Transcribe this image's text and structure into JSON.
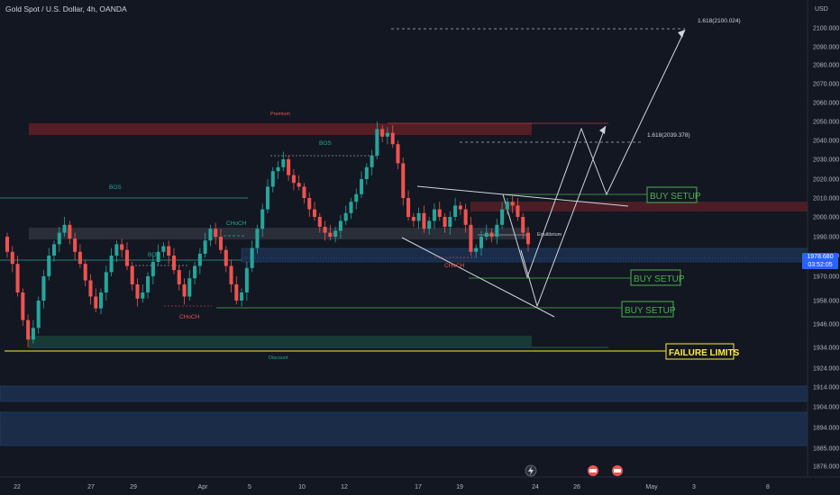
{
  "header": {
    "title": "Gold Spot / U.S. Dollar, 4h, OANDA"
  },
  "currency_label": "USD",
  "current_price": {
    "value": "1978.680",
    "countdown": "03:52:05"
  },
  "colors": {
    "up": "#26a69a",
    "down": "#ef5350",
    "premium_zone": "#5d1f26",
    "discount_zone": "#173a35",
    "demand_zone": "#1b2c48",
    "equilibrium_zone": "#2a2e39",
    "setup_green": "#4caf50",
    "failure_yellow": "#ffeb3b"
  },
  "chart_data": {
    "type": "candlestick",
    "title": "Gold Spot / U.S. Dollar, 4h, OANDA",
    "y_axis": {
      "ticks": [
        2100.0,
        2090.0,
        2080.0,
        2070.0,
        2060.0,
        2050.0,
        2040.0,
        2030.0,
        2020.0,
        2010.0,
        2000.0,
        1990.0,
        1980.0,
        1970.0,
        1958.0,
        1946.0,
        1934.0,
        1924.0,
        1914.0,
        1904.0,
        1894.0,
        1885.0,
        1876.0
      ],
      "range": [
        1873,
        2103
      ]
    },
    "x_axis": {
      "ticks": [
        "22",
        "27",
        "29",
        "Apr",
        "5",
        "10",
        "12",
        "17",
        "19",
        "24",
        "26",
        "May",
        "3",
        "8"
      ]
    },
    "candles_close": [
      1982,
      1976,
      1962,
      1948,
      1938,
      1944,
      1958,
      1970,
      1980,
      1986,
      1992,
      1996,
      1989,
      1982,
      1976,
      1968,
      1960,
      1954,
      1962,
      1972,
      1980,
      1986,
      1983,
      1975,
      1966,
      1959,
      1962,
      1970,
      1977,
      1982,
      1985,
      1980,
      1973,
      1966,
      1960,
      1969,
      1975,
      1981,
      1988,
      1994,
      1990,
      1983,
      1975,
      1966,
      1958,
      1962,
      1974,
      1984,
      1994,
      2004,
      2016,
      2024,
      2026,
      2030,
      2022,
      2018,
      2016,
      2010,
      2004,
      2000,
      1995,
      1992,
      1990,
      1993,
      1998,
      2002,
      2008,
      2012,
      2020,
      2026,
      2032,
      2046,
      2042,
      2044,
      2038,
      2028,
      2010,
      2000,
      1998,
      2002,
      1994,
      1998,
      2004,
      2000,
      1995,
      2000,
      2006,
      2004,
      1996,
      1982,
      1984,
      1990,
      1992,
      1990,
      1996,
      2004,
      2008,
      2006,
      2000,
      1992,
      1986
    ],
    "levels": [
      {
        "label": "1.618(2100.024)",
        "value": 2100.024
      },
      {
        "label": "1.618(2039.378)",
        "value": 2039.378
      }
    ],
    "annotations": [
      "Premium",
      "BOS",
      "BOS",
      "BOS",
      "CHoCH",
      "CHoCH",
      "CHoCH",
      "Equilibrium",
      "Discount",
      "BUY SETUP",
      "BUY SETUP",
      "BUY SETUP",
      "FAILURE LIMITS"
    ]
  },
  "labels": {
    "premium": "Premium",
    "discount": "Discount",
    "equilibrium": "Equilibrium",
    "bos_1": "BOS",
    "bos_2": "BOS",
    "bos_3": "BOS",
    "choch_1": "CHoCH",
    "choch_2": "CHoCH",
    "choch_3": "CHoCH",
    "buy_setup_1": "BUY SETUP",
    "buy_setup_2": "BUY SETUP",
    "buy_setup_3": "BUY SETUP",
    "failure_limits": "FAILURE LIMITS",
    "fib_1": "1.618(2100.024)",
    "fib_2": "1.618(2039.378)"
  },
  "icons": [
    "lightning-icon",
    "earnings-icon-1",
    "earnings-icon-2"
  ]
}
